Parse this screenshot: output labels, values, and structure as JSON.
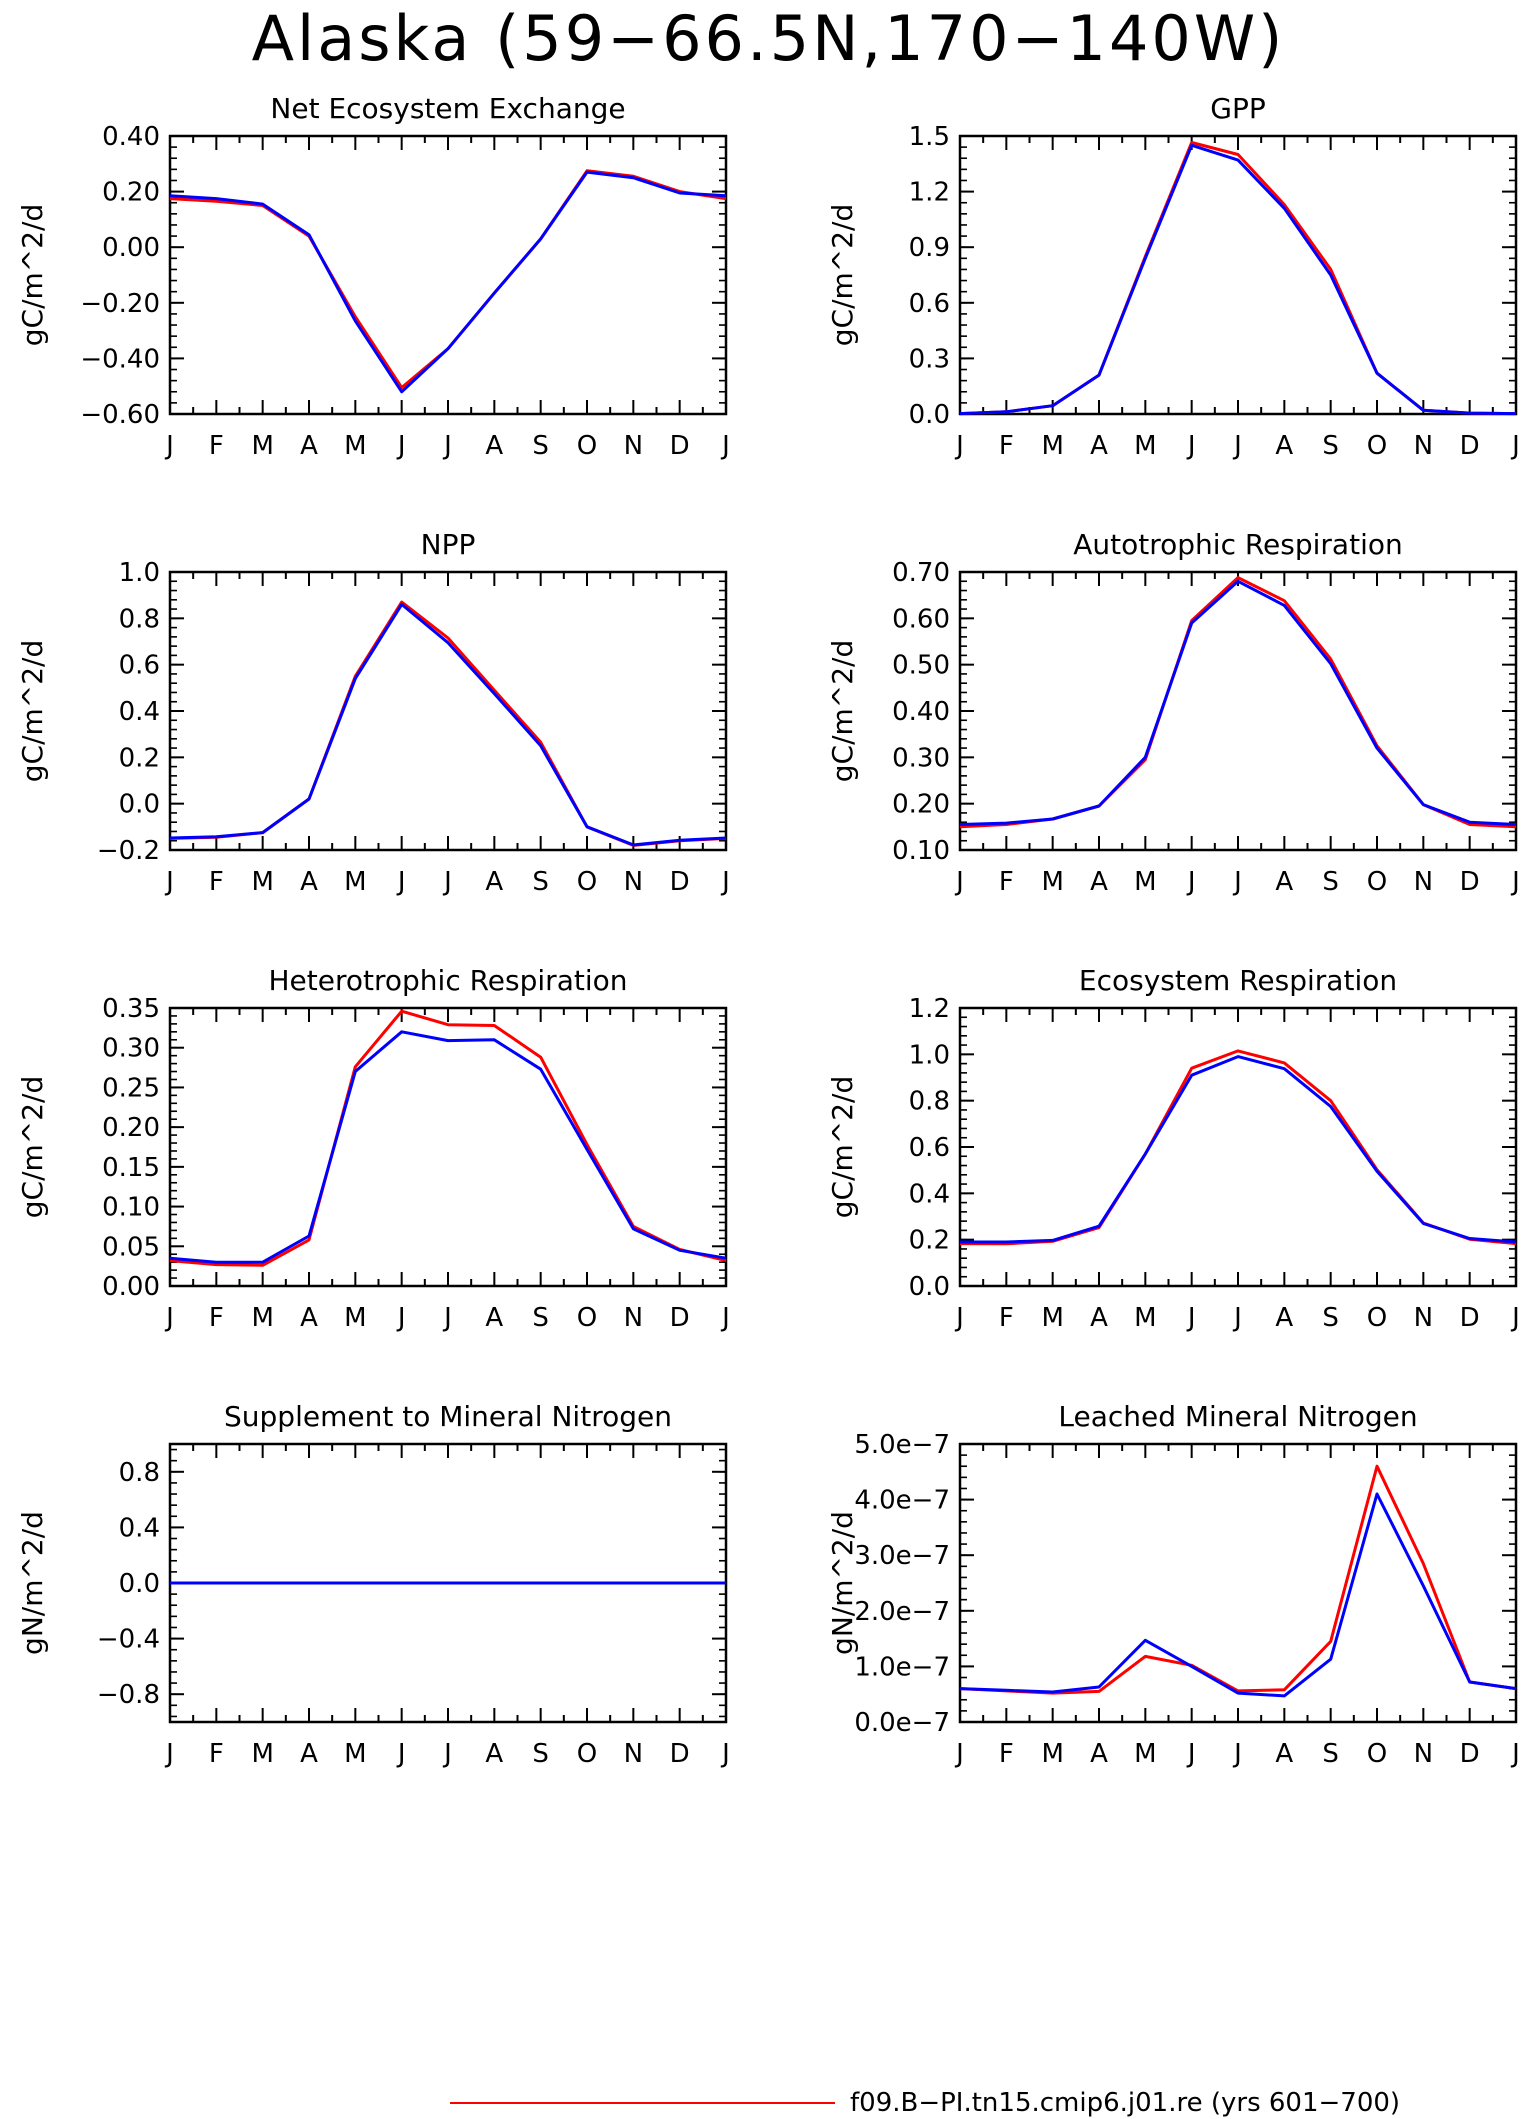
{
  "page": {
    "title": "Alaska (59−66.5N,170−140W)"
  },
  "legend": {
    "label": "f09.B−PI.tn15.cmip6.j01.re (yrs 601−700)",
    "color": "#ff0000"
  },
  "colors": {
    "series_red": "#ff0000",
    "series_blue": "#0000ff"
  },
  "months": [
    "J",
    "F",
    "M",
    "A",
    "M",
    "J",
    "J",
    "A",
    "S",
    "O",
    "N",
    "D",
    "J"
  ],
  "chart_data": [
    {
      "type": "line",
      "title": "Net Ecosystem Exchange",
      "ylabel": "gC/m^2/d",
      "ylim": [
        -0.6,
        0.4
      ],
      "yticks": [
        -0.6,
        -0.4,
        -0.2,
        0.0,
        0.2,
        0.4
      ],
      "ytick_labels": [
        "−0.60",
        "−0.40",
        "−0.20",
        "0.00",
        "0.20",
        "0.40"
      ],
      "x": [
        "J",
        "F",
        "M",
        "A",
        "M",
        "J",
        "J",
        "A",
        "S",
        "O",
        "N",
        "D",
        "J"
      ],
      "series": [
        {
          "color": "#ff0000",
          "values": [
            0.175,
            0.165,
            0.15,
            0.04,
            -0.25,
            -0.505,
            -0.365,
            -0.165,
            0.03,
            0.275,
            0.255,
            0.2,
            0.175
          ]
        },
        {
          "color": "#0000ff",
          "values": [
            0.185,
            0.175,
            0.155,
            0.045,
            -0.265,
            -0.52,
            -0.365,
            -0.165,
            0.03,
            0.27,
            0.25,
            0.195,
            0.185
          ]
        }
      ]
    },
    {
      "type": "line",
      "title": "GPP",
      "ylabel": "gC/m^2/d",
      "ylim": [
        0.0,
        1.5
      ],
      "yticks": [
        0.0,
        0.3,
        0.6,
        0.9,
        1.2,
        1.5
      ],
      "ytick_labels": [
        "0.0",
        "0.3",
        "0.6",
        "0.9",
        "1.2",
        "1.5"
      ],
      "x": [
        "J",
        "F",
        "M",
        "A",
        "M",
        "J",
        "J",
        "A",
        "S",
        "O",
        "N",
        "D",
        "J"
      ],
      "series": [
        {
          "color": "#ff0000",
          "values": [
            0.002,
            0.012,
            0.045,
            0.21,
            0.85,
            1.465,
            1.4,
            1.13,
            0.78,
            0.22,
            0.02,
            0.005,
            0.002
          ]
        },
        {
          "color": "#0000ff",
          "values": [
            0.002,
            0.012,
            0.045,
            0.21,
            0.84,
            1.45,
            1.37,
            1.11,
            0.75,
            0.22,
            0.02,
            0.005,
            0.002
          ]
        }
      ]
    },
    {
      "type": "line",
      "title": "NPP",
      "ylabel": "gC/m^2/d",
      "ylim": [
        -0.2,
        1.0
      ],
      "yticks": [
        -0.2,
        0.0,
        0.2,
        0.4,
        0.6,
        0.8,
        1.0
      ],
      "ytick_labels": [
        "−0.2",
        "0.0",
        "0.2",
        "0.4",
        "0.6",
        "0.8",
        "1.0"
      ],
      "x": [
        "J",
        "F",
        "M",
        "A",
        "M",
        "J",
        "J",
        "A",
        "S",
        "O",
        "N",
        "D",
        "J"
      ],
      "series": [
        {
          "color": "#ff0000",
          "values": [
            -0.15,
            -0.145,
            -0.125,
            0.02,
            0.55,
            0.87,
            0.715,
            0.49,
            0.265,
            -0.1,
            -0.18,
            -0.16,
            -0.15
          ]
        },
        {
          "color": "#0000ff",
          "values": [
            -0.148,
            -0.143,
            -0.125,
            0.02,
            0.54,
            0.86,
            0.695,
            0.475,
            0.25,
            -0.1,
            -0.178,
            -0.158,
            -0.148
          ]
        }
      ]
    },
    {
      "type": "line",
      "title": "Autotrophic Respiration",
      "ylabel": "gC/m^2/d",
      "ylim": [
        0.1,
        0.7
      ],
      "yticks": [
        0.1,
        0.2,
        0.3,
        0.4,
        0.5,
        0.6,
        0.7
      ],
      "ytick_labels": [
        "0.10",
        "0.20",
        "0.30",
        "0.40",
        "0.50",
        "0.60",
        "0.70"
      ],
      "x": [
        "J",
        "F",
        "M",
        "A",
        "M",
        "J",
        "J",
        "A",
        "S",
        "O",
        "N",
        "D",
        "J"
      ],
      "series": [
        {
          "color": "#ff0000",
          "values": [
            0.15,
            0.155,
            0.167,
            0.195,
            0.295,
            0.595,
            0.688,
            0.638,
            0.512,
            0.325,
            0.198,
            0.155,
            0.15
          ]
        },
        {
          "color": "#0000ff",
          "values": [
            0.155,
            0.158,
            0.167,
            0.195,
            0.3,
            0.59,
            0.68,
            0.628,
            0.502,
            0.32,
            0.198,
            0.16,
            0.155
          ]
        }
      ]
    },
    {
      "type": "line",
      "title": "Heterotrophic Respiration",
      "ylabel": "gC/m^2/d",
      "ylim": [
        0.0,
        0.35
      ],
      "yticks": [
        0.0,
        0.05,
        0.1,
        0.15,
        0.2,
        0.25,
        0.3,
        0.35
      ],
      "ytick_labels": [
        "0.00",
        "0.05",
        "0.10",
        "0.15",
        "0.20",
        "0.25",
        "0.30",
        "0.35"
      ],
      "x": [
        "J",
        "F",
        "M",
        "A",
        "M",
        "J",
        "J",
        "A",
        "S",
        "O",
        "N",
        "D",
        "J"
      ],
      "series": [
        {
          "color": "#ff0000",
          "values": [
            0.032,
            0.027,
            0.026,
            0.058,
            0.276,
            0.346,
            0.329,
            0.328,
            0.288,
            0.178,
            0.075,
            0.046,
            0.032
          ]
        },
        {
          "color": "#0000ff",
          "values": [
            0.035,
            0.03,
            0.03,
            0.063,
            0.27,
            0.32,
            0.309,
            0.31,
            0.273,
            0.172,
            0.072,
            0.045,
            0.035
          ]
        }
      ]
    },
    {
      "type": "line",
      "title": "Ecosystem Respiration",
      "ylabel": "gC/m^2/d",
      "ylim": [
        0.0,
        1.2
      ],
      "yticks": [
        0.0,
        0.2,
        0.4,
        0.6,
        0.8,
        1.0,
        1.2
      ],
      "ytick_labels": [
        "0.0",
        "0.2",
        "0.4",
        "0.6",
        "0.8",
        "1.0",
        "1.2"
      ],
      "x": [
        "J",
        "F",
        "M",
        "A",
        "M",
        "J",
        "J",
        "A",
        "S",
        "O",
        "N",
        "D",
        "J"
      ],
      "series": [
        {
          "color": "#ff0000",
          "values": [
            0.183,
            0.182,
            0.193,
            0.252,
            0.57,
            0.94,
            1.015,
            0.963,
            0.8,
            0.502,
            0.272,
            0.202,
            0.183
          ]
        },
        {
          "color": "#0000ff",
          "values": [
            0.19,
            0.19,
            0.197,
            0.258,
            0.57,
            0.91,
            0.99,
            0.938,
            0.775,
            0.495,
            0.27,
            0.205,
            0.19
          ]
        }
      ]
    },
    {
      "type": "line",
      "title": "Supplement to Mineral Nitrogen",
      "ylabel": "gN/m^2/d",
      "ylim": [
        -1.0,
        1.0
      ],
      "yticks": [
        -0.8,
        -0.4,
        0.0,
        0.4,
        0.8
      ],
      "ytick_labels": [
        "−0.8",
        "−0.4",
        "0.0",
        "0.4",
        "0.8"
      ],
      "x": [
        "J",
        "F",
        "M",
        "A",
        "M",
        "J",
        "J",
        "A",
        "S",
        "O",
        "N",
        "D",
        "J"
      ],
      "series": [
        {
          "color": "#ff0000",
          "values": [
            0,
            0,
            0,
            0,
            0,
            0,
            0,
            0,
            0,
            0,
            0,
            0,
            0
          ]
        },
        {
          "color": "#0000ff",
          "values": [
            0,
            0,
            0,
            0,
            0,
            0,
            0,
            0,
            0,
            0,
            0,
            0,
            0
          ]
        }
      ]
    },
    {
      "type": "line",
      "title": "Leached Mineral Nitrogen",
      "ylabel": "gN/m^2/d",
      "ylim": [
        0.0,
        5e-07
      ],
      "yticks": [
        0.0,
        1e-07,
        2e-07,
        3e-07,
        4e-07,
        5e-07
      ],
      "ytick_labels": [
        "0.0e−7",
        "1.0e−7",
        "2.0e−7",
        "3.0e−7",
        "4.0e−7",
        "5.0e−7"
      ],
      "x": [
        "J",
        "F",
        "M",
        "A",
        "M",
        "J",
        "J",
        "A",
        "S",
        "O",
        "N",
        "D",
        "J"
      ],
      "series": [
        {
          "color": "#ff0000",
          "values": [
            6e-08,
            5.6e-08,
            5.2e-08,
            5.5e-08,
            1.18e-07,
            1.02e-07,
            5.6e-08,
            5.8e-08,
            1.45e-07,
            4.6e-07,
            2.85e-07,
            7.2e-08,
            6e-08
          ]
        },
        {
          "color": "#0000ff",
          "values": [
            6e-08,
            5.7e-08,
            5.4e-08,
            6.3e-08,
            1.47e-07,
            1e-07,
            5.2e-08,
            4.7e-08,
            1.13e-07,
            4.1e-07,
            2.45e-07,
            7.2e-08,
            6e-08
          ]
        }
      ]
    }
  ]
}
